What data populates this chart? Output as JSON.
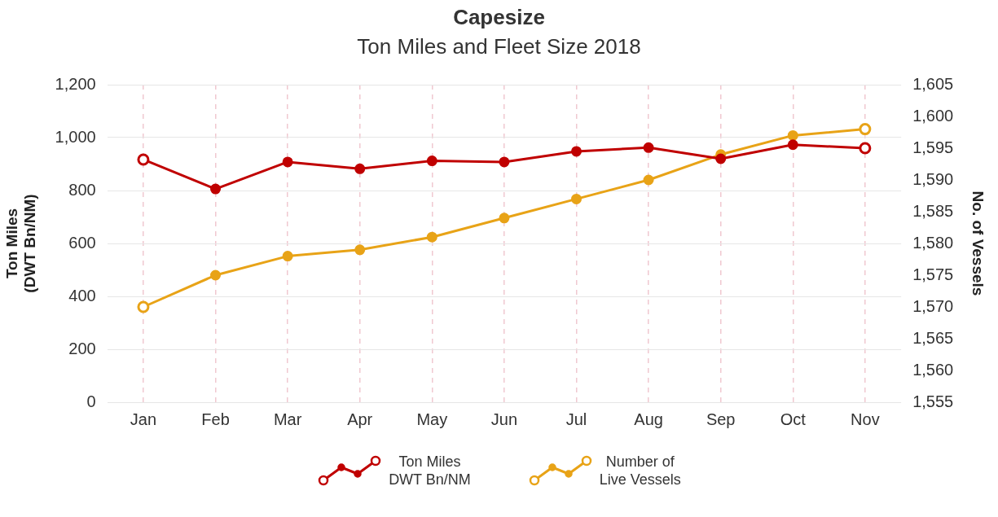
{
  "chart_data": {
    "type": "line",
    "title": "Capesize",
    "subtitle": "Ton Miles and Fleet Size 2018",
    "ylabel": "Ton Miles\n(DWT Bn/NM)",
    "y2label": "No. of Vessels",
    "categories": [
      "Jan",
      "Feb",
      "Mar",
      "Apr",
      "May",
      "Jun",
      "Jul",
      "Aug",
      "Sep",
      "Oct",
      "Nov"
    ],
    "series": [
      {
        "name": "Ton Miles\nDWT Bn/NM",
        "color": "#c00000",
        "values": [
          917,
          806,
          908,
          882,
          912,
          908,
          948,
          962,
          920,
          973,
          960
        ]
      },
      {
        "name": "Number of\nLive Vessels",
        "color": "#e8a317",
        "axis": "y2",
        "values": [
          1570,
          1575,
          1578,
          1579,
          1581,
          1584,
          1587,
          1590,
          1594,
          1597,
          1598
        ]
      }
    ],
    "ylim": [
      0,
      1200
    ],
    "yticks": [
      0,
      200,
      400,
      600,
      800,
      {
        "value": 1000,
        "label": "1,000"
      },
      {
        "value": 1200,
        "label": "1,200"
      }
    ],
    "y2lim": [
      1555,
      1605
    ],
    "y2ticks": [
      {
        "value": 1555,
        "label": "1,555"
      },
      {
        "value": 1560,
        "label": "1,560"
      },
      {
        "value": 1565,
        "label": "1,565"
      },
      {
        "value": 1570,
        "label": "1,570"
      },
      {
        "value": 1575,
        "label": "1,575"
      },
      {
        "value": 1580,
        "label": "1,580"
      },
      {
        "value": 1585,
        "label": "1,585"
      },
      {
        "value": 1590,
        "label": "1,590"
      },
      {
        "value": 1595,
        "label": "1,595"
      },
      {
        "value": 1600,
        "label": "1,600"
      },
      {
        "value": 1605,
        "label": "1,605"
      }
    ],
    "grid": true,
    "legend": "bottom",
    "marker": "circle",
    "line_style": "solid"
  }
}
